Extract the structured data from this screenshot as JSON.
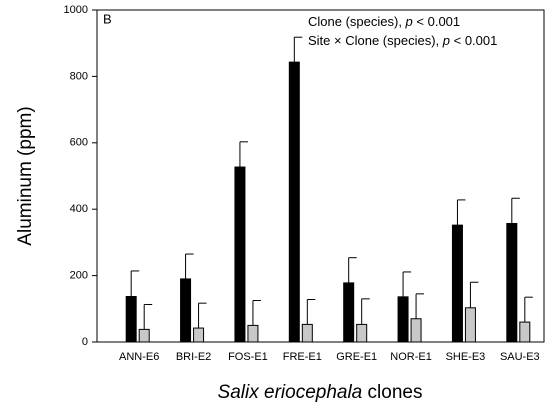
{
  "chart_data": {
    "type": "bar",
    "panel_label": "B",
    "annotations": [
      [
        "Clone (species), ",
        "p",
        " < 0.001"
      ],
      [
        "Site × Clone (species), ",
        "p",
        " < 0.001"
      ]
    ],
    "y_label": "Aluminum (ppm)",
    "x_label": [
      "Salix eriocephala",
      " clones"
    ],
    "categories": [
      "ANN-E6",
      "BRI-E2",
      "FOS-E1",
      "FRE-E1",
      "GRE-E1",
      "NOR-E1",
      "SHE-E3",
      "SAU-E3"
    ],
    "series": [
      {
        "color": "#000000",
        "values": [
          137,
          190,
          527,
          843,
          178,
          136,
          352,
          357
        ],
        "errors": [
          77,
          75,
          76,
          75,
          76,
          75,
          76,
          76
        ]
      },
      {
        "color": "#c8c8c8",
        "values": [
          38,
          42,
          50,
          53,
          53,
          70,
          103,
          60
        ],
        "errors": [
          75,
          75,
          75,
          75,
          77,
          75,
          77,
          75
        ]
      }
    ],
    "ylim": [
      0,
      1000
    ],
    "yticks": [
      0,
      200,
      400,
      600,
      800,
      1000
    ]
  }
}
